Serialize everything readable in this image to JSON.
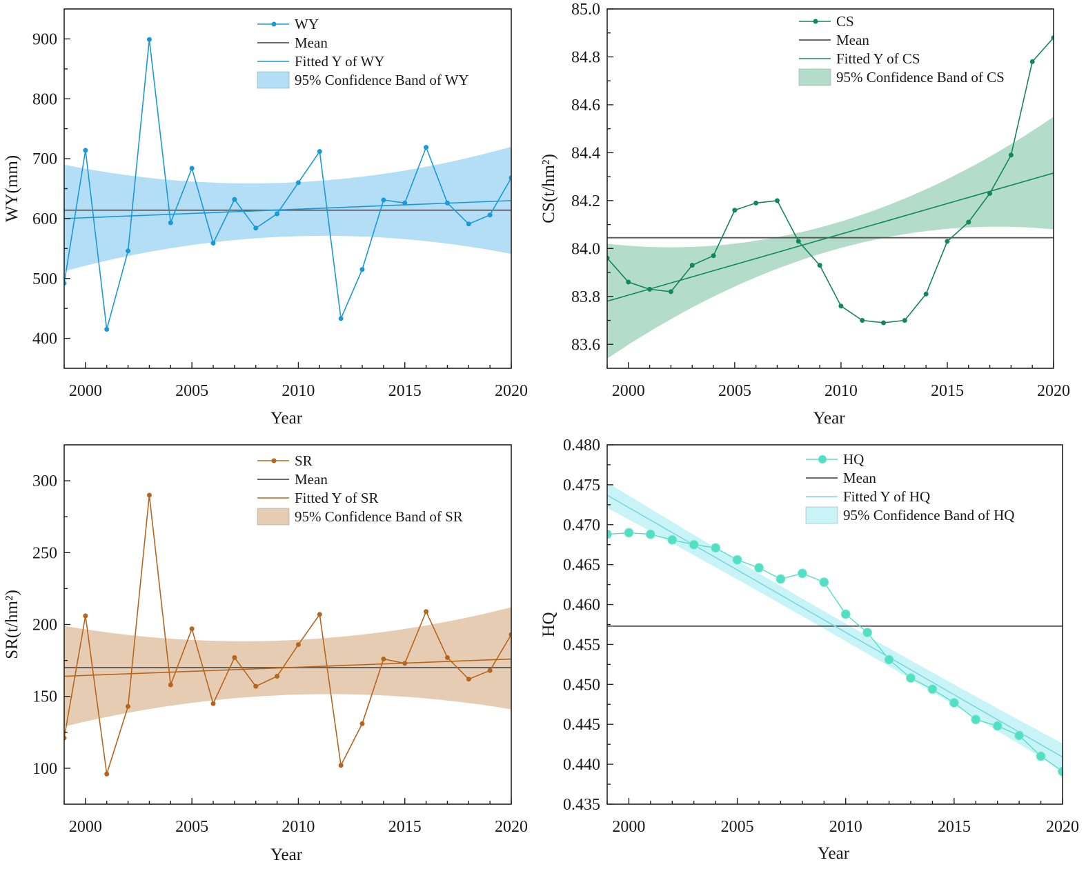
{
  "chart_data": [
    {
      "type": "line",
      "id": "wy",
      "title": "",
      "xlabel": "Year",
      "ylabel": "WY(mm)",
      "xlim": [
        1999,
        2020
      ],
      "ylim": [
        350,
        950
      ],
      "xticks": [
        2000,
        2005,
        2010,
        2015,
        2020
      ],
      "xtick_labels": [
        "2000",
        "2005",
        "2010",
        "2015",
        "2020"
      ],
      "yticks": [
        400,
        500,
        600,
        700,
        800,
        900
      ],
      "ytick_labels": [
        "400",
        "500",
        "600",
        "700",
        "800",
        "900"
      ],
      "x": [
        1999,
        2000,
        2001,
        2002,
        2003,
        2004,
        2005,
        2006,
        2007,
        2008,
        2009,
        2010,
        2011,
        2012,
        2013,
        2014,
        2015,
        2016,
        2017,
        2018,
        2019,
        2020
      ],
      "series": [
        {
          "name": "WY",
          "values": [
            492,
            714,
            415,
            546,
            899,
            593,
            684,
            559,
            632,
            584,
            608,
            660,
            712,
            433,
            515,
            631,
            626,
            719,
            626,
            591,
            606,
            668
          ]
        }
      ],
      "mean": 614,
      "fit": {
        "start": 600,
        "end": 630
      },
      "band": {
        "x": [
          1999,
          2009.5,
          2020
        ],
        "upper": [
          690,
          660,
          720
        ],
        "lower": [
          512,
          570,
          541
        ]
      },
      "legend": [
        "WY",
        "Mean",
        "Fitted Y of WY",
        "95% Confidence Band of WY"
      ],
      "legend_position": "top-center",
      "colors": {
        "series": "#1a99d8",
        "band": "#b3def5",
        "mean": "#555555"
      }
    },
    {
      "type": "line",
      "id": "cs",
      "title": "",
      "xlabel": "Year",
      "ylabel": "CS(t/hm²)",
      "xlim": [
        1999,
        2020
      ],
      "ylim": [
        83.5,
        85.0
      ],
      "xticks": [
        2000,
        2005,
        2010,
        2015,
        2020
      ],
      "xtick_labels": [
        "2000",
        "2005",
        "2010",
        "2015",
        "2020"
      ],
      "yticks": [
        83.6,
        83.8,
        84.0,
        84.2,
        84.4,
        84.6,
        84.8,
        85.0
      ],
      "ytick_labels": [
        "83.6",
        "83.8",
        "84.0",
        "84.2",
        "84.4",
        "84.6",
        "84.8",
        "85.0"
      ],
      "x": [
        1999,
        2000,
        2001,
        2002,
        2003,
        2004,
        2005,
        2006,
        2007,
        2008,
        2009,
        2010,
        2011,
        2012,
        2013,
        2014,
        2015,
        2016,
        2017,
        2018,
        2019,
        2020
      ],
      "series": [
        {
          "name": "CS",
          "values": [
            83.96,
            83.86,
            83.83,
            83.82,
            83.93,
            83.97,
            84.16,
            84.19,
            84.2,
            84.03,
            83.93,
            83.76,
            83.7,
            83.69,
            83.7,
            83.81,
            84.03,
            84.11,
            84.23,
            84.39,
            84.78,
            84.88
          ]
        }
      ],
      "mean": 84.045,
      "fit": {
        "start": 83.78,
        "end": 84.315
      },
      "band": {
        "x": [
          1999,
          2009.5,
          2020
        ],
        "upper": [
          84.02,
          84.1,
          84.55
        ],
        "lower": [
          83.54,
          83.99,
          84.08
        ]
      },
      "legend": [
        "CS",
        "Mean",
        "Fitted Y of CS",
        "95% Confidence Band of CS"
      ],
      "legend_position": "top-center",
      "colors": {
        "series": "#12875a",
        "band": "#b3dccb",
        "mean": "#555555"
      }
    },
    {
      "type": "line",
      "id": "sr",
      "title": "",
      "xlabel": "Year",
      "ylabel": "SR(t/hm²)",
      "xlim": [
        1999,
        2020
      ],
      "ylim": [
        75,
        325
      ],
      "xticks": [
        2000,
        2005,
        2010,
        2015,
        2020
      ],
      "xtick_labels": [
        "2000",
        "2005",
        "2010",
        "2015",
        "2020"
      ],
      "yticks": [
        100,
        150,
        200,
        250,
        300
      ],
      "ytick_labels": [
        "100",
        "150",
        "200",
        "250",
        "300"
      ],
      "x": [
        1999,
        2000,
        2001,
        2002,
        2003,
        2004,
        2005,
        2006,
        2007,
        2008,
        2009,
        2010,
        2011,
        2012,
        2013,
        2014,
        2015,
        2016,
        2017,
        2018,
        2019,
        2020
      ],
      "series": [
        {
          "name": "SR",
          "values": [
            121,
            206,
            96,
            143,
            290,
            158,
            197,
            145,
            177,
            157,
            164,
            186,
            207,
            102,
            131,
            176,
            173,
            209,
            177,
            162,
            168,
            193
          ]
        }
      ],
      "mean": 170,
      "fit": {
        "start": 164,
        "end": 176
      },
      "band": {
        "x": [
          1999,
          2009.5,
          2020
        ],
        "upper": [
          199,
          189,
          212
        ],
        "lower": [
          129,
          151,
          141
        ]
      },
      "legend": [
        "SR",
        "Mean",
        "Fitted Y of SR",
        "95% Confidence Band of SR"
      ],
      "legend_position": "top-center",
      "colors": {
        "series": "#b5651d",
        "band": "#e7ccb4",
        "mean": "#555555"
      }
    },
    {
      "type": "line",
      "id": "hq",
      "title": "",
      "xlabel": "Year",
      "ylabel": "HQ",
      "xlim": [
        1999,
        2020
      ],
      "ylim": [
        0.435,
        0.48
      ],
      "xticks": [
        2000,
        2005,
        2010,
        2015,
        2020
      ],
      "xtick_labels": [
        "2000",
        "2005",
        "2010",
        "2015",
        "2020"
      ],
      "yticks": [
        0.435,
        0.44,
        0.445,
        0.45,
        0.455,
        0.46,
        0.465,
        0.47,
        0.475,
        0.48
      ],
      "ytick_labels": [
        "0.435",
        "0.440",
        "0.445",
        "0.450",
        "0.455",
        "0.460",
        "0.465",
        "0.470",
        "0.475",
        "0.480"
      ],
      "x": [
        1999,
        2000,
        2001,
        2002,
        2003,
        2004,
        2005,
        2006,
        2007,
        2008,
        2009,
        2010,
        2011,
        2012,
        2013,
        2014,
        2015,
        2016,
        2017,
        2018,
        2019,
        2020
      ],
      "series": [
        {
          "name": "HQ",
          "values": [
            0.4688,
            0.469,
            0.4688,
            0.4681,
            0.4675,
            0.4671,
            0.4656,
            0.4646,
            0.4632,
            0.4639,
            0.4628,
            0.4588,
            0.4565,
            0.4531,
            0.4508,
            0.4494,
            0.4477,
            0.4456,
            0.4448,
            0.4436,
            0.441,
            0.4391
          ]
        }
      ],
      "mean": 0.4573,
      "fit": {
        "start": 0.4737,
        "end": 0.4409
      },
      "band": {
        "x": [
          1999,
          2009.5,
          2020
        ],
        "upper": [
          0.4753,
          0.4584,
          0.4426
        ],
        "lower": [
          0.4721,
          0.4562,
          0.4392
        ]
      },
      "legend": [
        "HQ",
        "Mean",
        "Fitted Y of HQ",
        "95% Confidence Band of HQ"
      ],
      "legend_position": "top-center",
      "colors": {
        "series": "#52e0c4",
        "band": "#c8f4f7",
        "mean": "#555555",
        "fit": "#7ad8e0"
      }
    }
  ]
}
